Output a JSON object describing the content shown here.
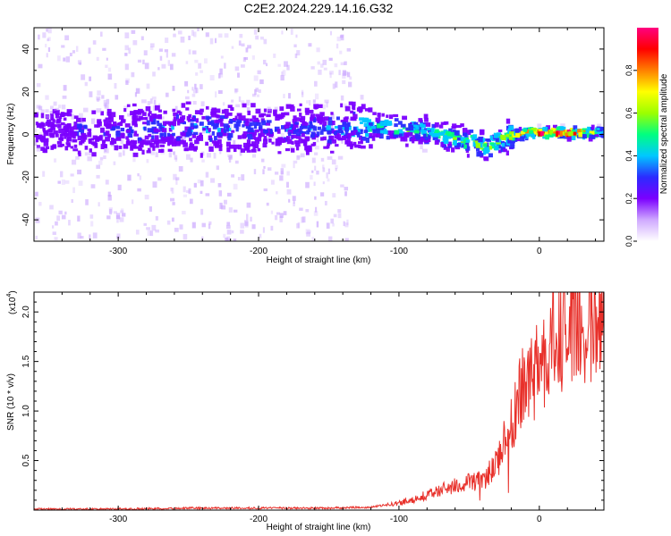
{
  "title": "C2E2.2024.229.14.16.G32",
  "colors": {
    "snr_line": "#e8302a",
    "spectrogram_core_purple": "#5a00e6",
    "spectrogram_halo": "#c9a5ff"
  },
  "chart_data": [
    {
      "type": "heatmap",
      "title": "C2E2.2024.229.14.16.G32",
      "xlabel": "Height of straight line (km)",
      "ylabel": "Frequency (Hz)",
      "xlim": [
        -360,
        46
      ],
      "ylim": [
        -50,
        50
      ],
      "x_ticks": [
        "-300",
        "-200",
        "-100",
        "0"
      ],
      "y_ticks": [
        "-40",
        "-20",
        "0",
        "20",
        "40"
      ],
      "grid": false,
      "colorbar": {
        "label": "Normalized spectral amplitude",
        "range": [
          0,
          1
        ],
        "ticks": [
          "0.0",
          "0.2",
          "0.4",
          "0.6",
          "0.8"
        ],
        "colormap": [
          "#ffffff",
          "#cfa9ff",
          "#7b00ff",
          "#2b2bff",
          "#00c8ff",
          "#00ff80",
          "#9cff00",
          "#ffff00",
          "#ff8000",
          "#ff0000",
          "#ff0080"
        ]
      },
      "ridge": {
        "x": [
          -360,
          -300,
          -250,
          -200,
          -150,
          -120,
          -100,
          -80,
          -60,
          -45,
          -35,
          -25,
          -10,
          0,
          20,
          46
        ],
        "y": [
          1.5,
          2.0,
          3.0,
          2.5,
          2.5,
          4.0,
          3.0,
          1.0,
          -2.0,
          -4.5,
          -5.0,
          -1.0,
          1.0,
          1.0,
          1.0,
          1.0
        ],
        "amplitude": [
          0.2,
          0.3,
          0.35,
          0.3,
          0.35,
          0.45,
          0.5,
          0.5,
          0.55,
          0.6,
          0.55,
          0.6,
          0.75,
          0.95,
          0.95,
          0.5
        ]
      }
    },
    {
      "type": "line",
      "xlabel": "Height of straight line (km)",
      "ylabel": "SNR (10 * v/v)",
      "multiplier_label": "(x10",
      "multiplier_exponent": "4",
      "xlim": [
        -360,
        46
      ],
      "ylim": [
        0,
        2.2
      ],
      "x_ticks": [
        "-300",
        "-200",
        "-100",
        "0"
      ],
      "y_ticks": [
        "0.5",
        "1.0",
        "1.5",
        "2.0"
      ],
      "grid": false,
      "series": [
        {
          "x": [
            -360,
            -300,
            -250,
            -200,
            -150,
            -120,
            -100,
            -80,
            -60,
            -40,
            -30,
            -20,
            -15,
            -10,
            0,
            10,
            20,
            30,
            40,
            46
          ],
          "y": [
            0.01,
            0.01,
            0.02,
            0.02,
            0.02,
            0.03,
            0.07,
            0.15,
            0.25,
            0.3,
            0.5,
            0.9,
            1.1,
            1.3,
            1.5,
            1.7,
            1.8,
            1.9,
            1.95,
            1.95
          ]
        }
      ]
    }
  ]
}
